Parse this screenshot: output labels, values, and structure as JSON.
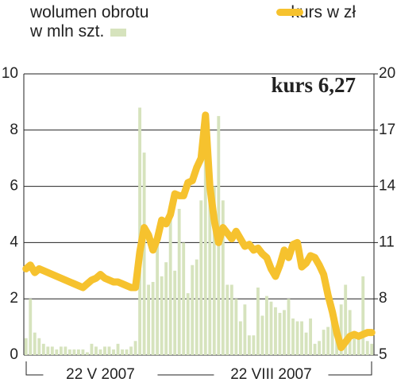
{
  "chart_data": {
    "type": "bar-line",
    "annotation": "kurs 6,27",
    "categories": [
      null,
      null,
      null,
      null,
      null,
      null,
      null,
      null,
      null,
      null,
      null,
      null,
      null,
      null,
      null,
      null,
      null,
      "22 V 2007",
      null,
      null,
      null,
      null,
      null,
      null,
      null,
      null,
      null,
      null,
      null,
      null,
      null,
      null,
      null,
      null,
      null,
      null,
      null,
      null,
      null,
      null,
      null,
      null,
      null,
      null,
      null,
      null,
      null,
      null,
      null,
      null,
      null,
      null,
      null,
      null,
      null,
      null,
      "22 VIII 2007",
      null,
      null,
      null,
      null,
      null,
      null,
      null,
      null,
      null,
      null,
      null,
      null,
      null,
      null,
      null,
      null,
      null,
      null,
      null,
      null,
      null,
      null,
      null
    ],
    "series": [
      {
        "name": "wolumen obrotu w mln szt.",
        "color": "#d6e3bd",
        "values": [
          0.6,
          2.0,
          0.8,
          0.6,
          0.4,
          0.3,
          0.3,
          0.2,
          0.3,
          0.3,
          0.2,
          0.2,
          0.2,
          0.2,
          0.1,
          0.4,
          0.3,
          0.2,
          0.3,
          0.3,
          0.2,
          0.4,
          0.2,
          0.2,
          0.3,
          0.5,
          8.8,
          7.2,
          2.5,
          2.6,
          4.4,
          2.8,
          3.3,
          5.1,
          3.0,
          5.2,
          4.0,
          2.2,
          3.2,
          3.4,
          5.5,
          7.6,
          6.3,
          6.0,
          8.5,
          5.5,
          2.5,
          2.5,
          2.0,
          1.2,
          1.8,
          0.7,
          0.7,
          2.4,
          1.4,
          2.1,
          1.9,
          1.7,
          1.5,
          1.6,
          2.0,
          1.3,
          1.2,
          1.2,
          0.8,
          1.3,
          0.4,
          0.5,
          0.9,
          1.0,
          1.2,
          1.0,
          1.8,
          2.5,
          1.6,
          0.7,
          0.6,
          2.8,
          0.5,
          0.4
        ]
      },
      {
        "name": "kurs w zł",
        "color": "#f6c22e",
        "axis": "y2",
        "values": [
          9.6,
          9.8,
          9.4,
          9.6,
          9.5,
          9.4,
          9.3,
          9.2,
          9.1,
          9.0,
          8.9,
          8.8,
          8.7,
          8.6,
          8.8,
          9.0,
          9.1,
          9.3,
          9.1,
          9.0,
          8.9,
          8.9,
          8.8,
          8.7,
          8.6,
          8.6,
          10.5,
          11.8,
          11.4,
          10.6,
          11.2,
          12.2,
          12.0,
          12.5,
          13.6,
          13.5,
          13.5,
          14.2,
          14.3,
          15.0,
          15.5,
          17.8,
          14.0,
          12.2,
          11.0,
          11.8,
          11.5,
          11.2,
          11.6,
          11.2,
          10.8,
          10.9,
          10.6,
          10.7,
          10.4,
          10.2,
          9.6,
          9.2,
          9.8,
          10.6,
          10.2,
          10.9,
          11.0,
          9.7,
          9.9,
          10.3,
          10.2,
          9.8,
          9.3,
          8.2,
          7.3,
          6.2,
          5.4,
          5.7,
          6.0,
          6.1,
          6.0,
          6.1,
          6.2,
          6.2
        ]
      }
    ],
    "ylim": [
      0,
      10
    ],
    "yticks": [
      0,
      2,
      4,
      6,
      8,
      10
    ],
    "y2lim": [
      5,
      20
    ],
    "y2ticks": [
      5,
      8,
      11,
      14,
      17,
      20
    ],
    "grid": true
  }
}
